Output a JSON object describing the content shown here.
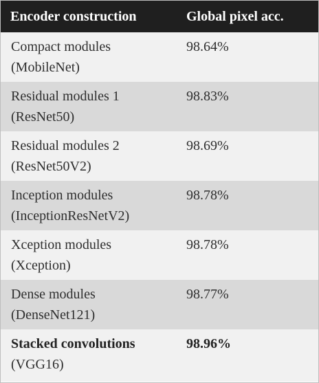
{
  "table": {
    "headers": {
      "col1": "Encoder construction",
      "col2": "Global pixel acc."
    },
    "rows": [
      {
        "name_line1": "Compact modules",
        "name_line2": "(MobileNet)",
        "acc": "98.64%"
      },
      {
        "name_line1": "Residual modules 1",
        "name_line2": "(ResNet50)",
        "acc": "98.83%"
      },
      {
        "name_line1": "Residual modules 2",
        "name_line2": "(ResNet50V2)",
        "acc": "98.69%"
      },
      {
        "name_line1": "Inception modules",
        "name_line2": "(InceptionResNetV2)",
        "acc": "98.78%"
      },
      {
        "name_line1": "Xception modules",
        "name_line2": "(Xception)",
        "acc": "98.78%"
      },
      {
        "name_line1": "Dense modules",
        "name_line2": "(DenseNet121)",
        "acc": "98.77%"
      },
      {
        "name_line1": "Stacked convolutions",
        "name_line2": "(VGG16)",
        "acc": "98.96%"
      }
    ],
    "colors": {
      "header_bg": "#1f1f1f",
      "row_light": "#f1f1f1",
      "row_dark": "#d9d9d9"
    }
  }
}
